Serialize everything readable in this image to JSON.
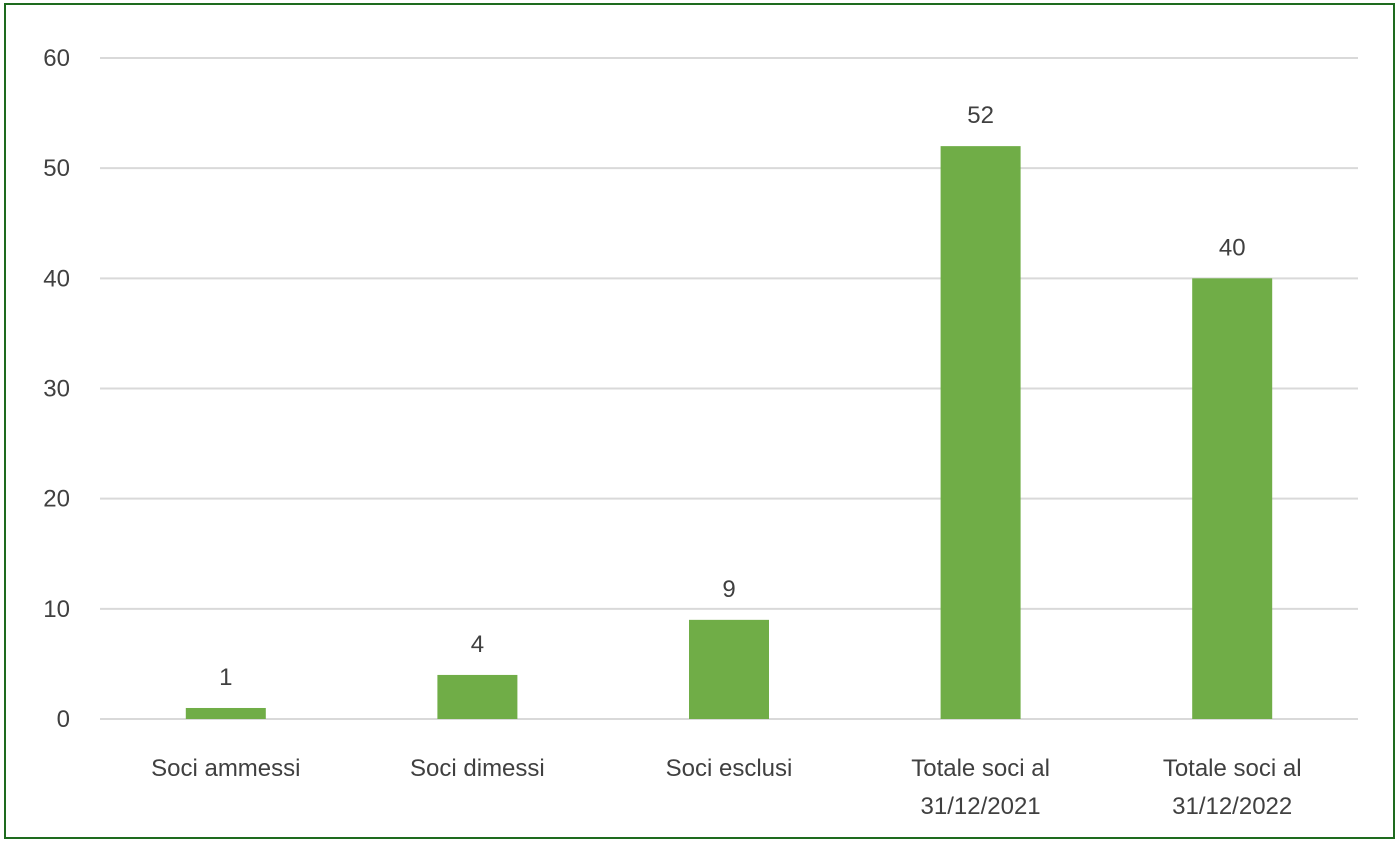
{
  "chart_data": {
    "type": "bar",
    "categories": [
      [
        "Soci ammessi"
      ],
      [
        "Soci dimessi"
      ],
      [
        "Soci esclusi"
      ],
      [
        "Totale soci al",
        "31/12/2021"
      ],
      [
        "Totale soci al",
        "31/12/2022"
      ]
    ],
    "values": [
      1,
      4,
      9,
      52,
      40
    ],
    "data_labels": [
      "1",
      "4",
      "9",
      "52",
      "40"
    ],
    "title": "",
    "xlabel": "",
    "ylabel": "",
    "ylim": [
      0,
      60
    ],
    "yticks": [
      0,
      10,
      20,
      30,
      40,
      50,
      60
    ],
    "ytick_labels": [
      "0",
      "10",
      "20",
      "30",
      "40",
      "50",
      "60"
    ],
    "grid": true,
    "legend": "none",
    "colors": {
      "bar": "#70ad47",
      "grid": "#d9d9d9",
      "text": "#404040",
      "frame": "#1e6b1e"
    }
  }
}
